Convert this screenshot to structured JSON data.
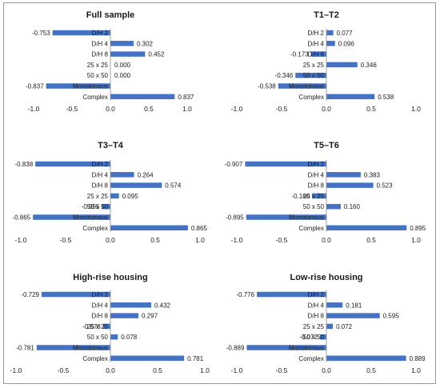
{
  "figure": {
    "categories": [
      "D/H 2",
      "D/H 4",
      "D/H 8",
      "25 x 25",
      "50 x 50",
      "Monotonous",
      "Complex"
    ],
    "xticks": [
      "-1.0",
      "-0.5",
      "0.0",
      "0.5",
      "1.0"
    ],
    "bar_color": "#4472c4"
  },
  "chart_data": [
    {
      "type": "bar",
      "orientation": "horizontal",
      "title": "Full sample",
      "categories": [
        "D/H 2",
        "D/H 4",
        "D/H 8",
        "25 x 25",
        "50 x 50",
        "Monotonous",
        "Complex"
      ],
      "values": [
        -0.753,
        0.302,
        0.452,
        0.0,
        0.0,
        -0.837,
        0.837
      ],
      "labels": [
        "-0.753",
        "0.302",
        "0.452",
        "0.000",
        "0.000",
        "-0.837",
        "0.837"
      ],
      "xlim": [
        -1.0,
        1.0
      ],
      "grid": false,
      "legend": "none"
    },
    {
      "type": "bar",
      "orientation": "horizontal",
      "title": "T1–T2",
      "categories": [
        "D/H 2",
        "D/H 4",
        "D/H 8",
        "25 x 25",
        "50 x 50",
        "Monotonous",
        "Complex"
      ],
      "values": [
        0.077,
        0.096,
        -0.173,
        0.346,
        -0.346,
        -0.538,
        0.538
      ],
      "labels": [
        "0.077",
        "0.096",
        "-0.173",
        "0.346",
        "-0.346",
        "-0.538",
        "0.538"
      ],
      "xlim": [
        -1.0,
        1.0
      ],
      "grid": false,
      "legend": "none"
    },
    {
      "type": "bar",
      "orientation": "horizontal",
      "title": "T3–T4",
      "categories": [
        "D/H 2",
        "D/H 4",
        "D/H 8",
        "25 x 25",
        "50 x 50",
        "Monotonous",
        "Complex"
      ],
      "values": [
        -0.838,
        0.264,
        0.574,
        0.095,
        -0.095,
        -0.865,
        0.865
      ],
      "labels": [
        "-0.838",
        "0.264",
        "0.574",
        "0.095",
        "-0.095",
        "-0.865",
        "0.865"
      ],
      "xlim": [
        -1.0,
        1.0
      ],
      "grid": false,
      "legend": "none"
    },
    {
      "type": "bar",
      "orientation": "horizontal",
      "title": "T5–T6",
      "categories": [
        "D/H 2",
        "D/H 4",
        "D/H 8",
        "25 x 25",
        "50 x 50",
        "Monotonous",
        "Complex"
      ],
      "values": [
        -0.907,
        0.383,
        0.523,
        -0.16,
        0.16,
        -0.895,
        0.895
      ],
      "labels": [
        "-0.907",
        "0.383",
        "0.523",
        "-0.160",
        "0.160",
        "-0.895",
        "0.895"
      ],
      "xlim": [
        -1.0,
        1.0
      ],
      "grid": false,
      "legend": "none"
    },
    {
      "type": "bar",
      "orientation": "horizontal",
      "title": "High-rise housing",
      "categories": [
        "D/H 2",
        "D/H 4",
        "D/H 8",
        "25 x 25",
        "50 x 50",
        "Monotonous",
        "Complex"
      ],
      "values": [
        -0.729,
        0.432,
        0.297,
        -0.078,
        0.078,
        -0.781,
        0.781
      ],
      "labels": [
        "-0.729",
        "0.432",
        "0.297",
        "-0.078",
        "0.078",
        "-0.781",
        "0.781"
      ],
      "xlim": [
        -1.0,
        1.0
      ],
      "grid": false,
      "legend": "none"
    },
    {
      "type": "bar",
      "orientation": "horizontal",
      "title": "Low-rise housing",
      "categories": [
        "D/H 2",
        "D/H 4",
        "D/H 8",
        "25 x 25",
        "50 x 50",
        "Monotonous",
        "Complex"
      ],
      "values": [
        -0.776,
        0.181,
        0.595,
        0.072,
        -0.072,
        -0.889,
        0.889
      ],
      "labels": [
        "-0.776",
        "0.181",
        "0.595",
        "0.072",
        "-0.072",
        "-0.889",
        "0.889"
      ],
      "xlim": [
        -1.0,
        1.0
      ],
      "grid": false,
      "legend": "none"
    }
  ]
}
